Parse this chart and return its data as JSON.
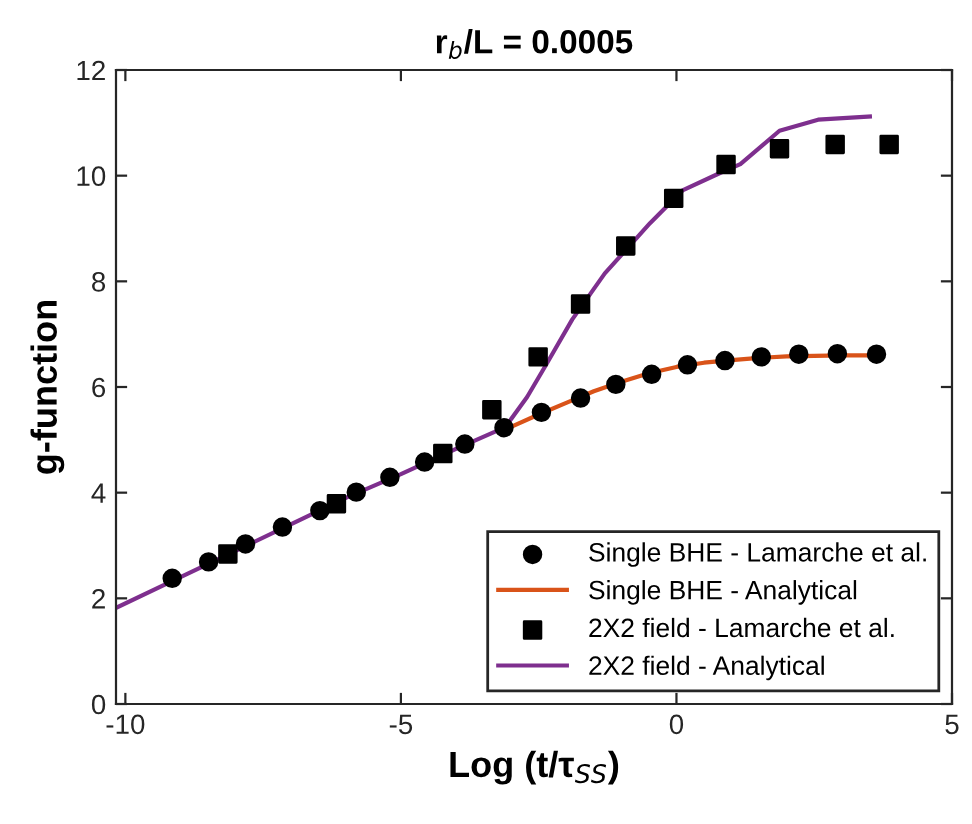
{
  "chart_data": {
    "type": "line",
    "title": "r$_{b}$/L = 0.0005",
    "xlabel": "Log (t/τ$_{SS}$)",
    "ylabel": "g-function",
    "xlim": [
      -10.17,
      5
    ],
    "ylim": [
      0,
      12
    ],
    "xticks": [
      -10,
      -5,
      0,
      5
    ],
    "yticks": [
      0,
      2,
      4,
      6,
      8,
      10,
      12
    ],
    "grid": false,
    "legend": "bottom right",
    "series": [
      {
        "name": "Single BHE - Lamarche et al.",
        "type": "scatter",
        "marker": "circle",
        "color": "#000000",
        "x": [
          -9.15,
          -8.49,
          -7.82,
          -7.15,
          -6.47,
          -5.81,
          -5.2,
          -4.57,
          -3.84,
          -3.13,
          -2.45,
          -1.74,
          -1.1,
          -0.45,
          0.2,
          0.88,
          1.54,
          2.22,
          2.92,
          3.63
        ],
        "values": [
          2.38,
          2.69,
          3.03,
          3.35,
          3.66,
          4.01,
          4.29,
          4.58,
          4.92,
          5.23,
          5.52,
          5.79,
          6.05,
          6.24,
          6.42,
          6.5,
          6.57,
          6.62,
          6.63,
          6.62
        ]
      },
      {
        "name": "Single BHE - Analytical",
        "color": "#d95319",
        "x": [
          -3.1,
          -2.5,
          -2,
          -1.5,
          -1,
          -0.5,
          0,
          0.5,
          1,
          1.5,
          2,
          2.5,
          3,
          3.6
        ],
        "values": [
          5.2,
          5.48,
          5.7,
          5.92,
          6.1,
          6.26,
          6.38,
          6.46,
          6.51,
          6.55,
          6.58,
          6.59,
          6.6,
          6.6
        ]
      },
      {
        "name": "2X2 field - Lamarche et al.",
        "type": "scatter",
        "marker": "square",
        "color": "#000000",
        "x": [
          -8.14,
          -6.17,
          -4.24,
          -3.35,
          -2.51,
          -1.74,
          -0.92,
          -0.05,
          0.9,
          1.87,
          2.88,
          3.86
        ],
        "values": [
          2.84,
          3.79,
          4.74,
          5.57,
          6.57,
          7.57,
          8.67,
          9.57,
          10.21,
          10.51,
          10.59,
          10.59
        ]
      },
      {
        "name": "2X2 field - Analytical",
        "color": "#7e2f8e",
        "x": [
          -10.17,
          -9,
          -8,
          -7,
          -6,
          -5,
          -4,
          -3.3,
          -3.1,
          -2.71,
          -2.36,
          -1.89,
          -1.3,
          -0.48,
          0.11,
          0.81,
          1.16,
          1.87,
          2.57,
          3.51
        ],
        "values": [
          1.82,
          2.4,
          2.9,
          3.4,
          3.9,
          4.35,
          4.83,
          5.15,
          5.25,
          5.81,
          6.43,
          7.28,
          8.15,
          9.1,
          9.72,
          10.06,
          10.22,
          10.85,
          11.06,
          11.12
        ]
      }
    ]
  }
}
